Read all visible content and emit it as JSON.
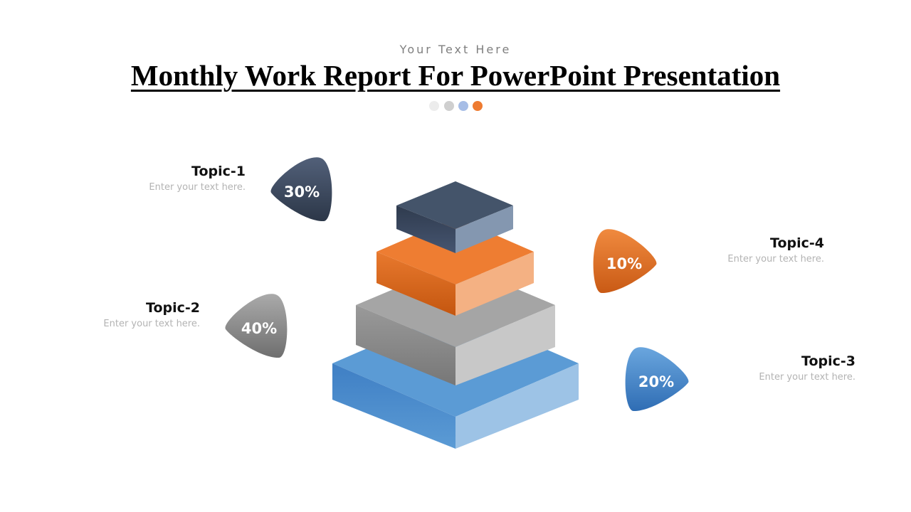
{
  "header": {
    "subtitle": "Your Text Here",
    "title": "Monthly Work Report For PowerPoint Presentation",
    "dot_colors": [
      "#ececec",
      "#cfcfcf",
      "#a6bde6",
      "#ee7b30"
    ]
  },
  "topics": [
    {
      "title": "Topic-1",
      "description": "Enter your text here.",
      "percent": "30%",
      "color": "#3c4a61"
    },
    {
      "title": "Topic-2",
      "description": "Enter your text here.",
      "percent": "40%",
      "color": "#8f8f8f"
    },
    {
      "title": "Topic-3",
      "description": "Enter your text here.",
      "percent": "20%",
      "color": "#4b88cc"
    },
    {
      "title": "Topic-4",
      "description": "Enter your text here.",
      "percent": "10%",
      "color": "#e5742a"
    }
  ],
  "pyramid": {
    "layer_colors": [
      "#4a5a75",
      "#ee7d32",
      "#a6a6a6",
      "#5b9bd5"
    ]
  }
}
